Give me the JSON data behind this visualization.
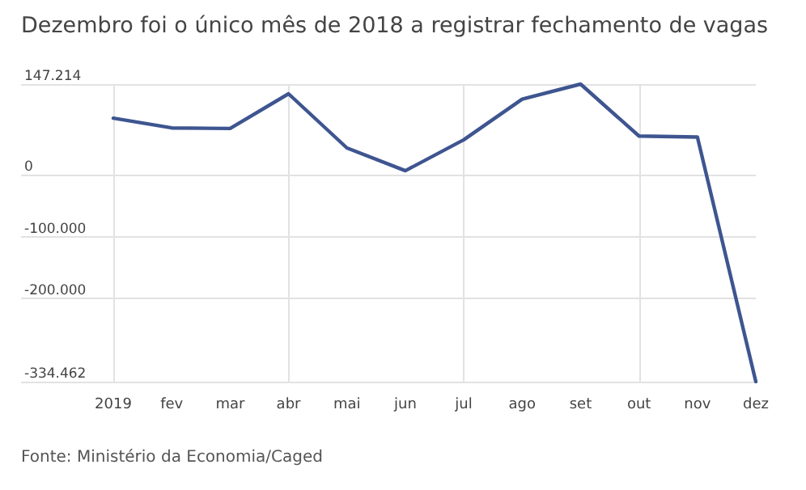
{
  "chart_data": {
    "type": "line",
    "title": "Dezembro foi o único mês de 2018 a registrar fechamento de vagas",
    "categories": [
      "2019",
      "fev",
      "mar",
      "abr",
      "mai",
      "jun",
      "jul",
      "ago",
      "set",
      "out",
      "nov",
      "dez"
    ],
    "series": [
      {
        "color": "#3e5590",
        "values": [
          92000,
          76300,
          75400,
          131500,
          43800,
          7000,
          57000,
          122800,
          147214,
          63100,
          61400,
          -334462
        ]
      }
    ],
    "ylim": [
      -334462,
      147214
    ],
    "yticks": [
      {
        "value": -334462,
        "label": "-334.462"
      },
      {
        "value": -200000,
        "label": "-200.000"
      },
      {
        "value": -100000,
        "label": "-100.000"
      },
      0,
      {
        "value": 147214,
        "label": "147.214"
      }
    ],
    "grid": true,
    "marker": "none",
    "line_style": "solid",
    "annotations": [
      "Fonte: Ministério da Economia/Caged"
    ]
  }
}
